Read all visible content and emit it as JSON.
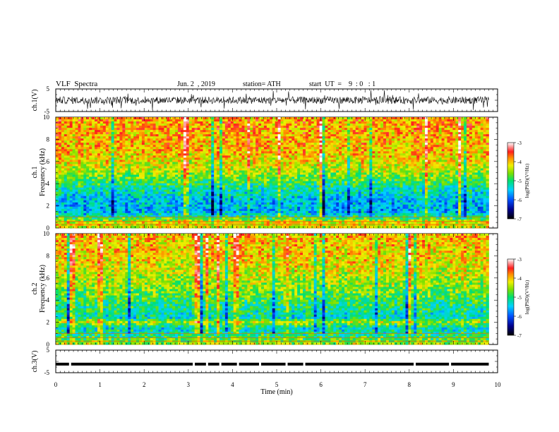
{
  "header": {
    "title": "VLF  Spectra",
    "date": "Jun. 2  , 2019",
    "station": "station= ATH",
    "start": "start  UT  =    9  : 0   : 1"
  },
  "chart_data": {
    "type": "heatmap",
    "time_axis": {
      "label": "Time  (min)",
      "range": [
        0,
        10
      ],
      "ticks": [
        "0",
        "1",
        "2",
        "3",
        "4",
        "5",
        "6",
        "7",
        "8",
        "9",
        "10"
      ],
      "data_end_min": 9.8
    },
    "panels": [
      {
        "id": "ch1_waveform",
        "type": "line",
        "ylabel": "ch.1(V)",
        "ylim": [
          -5,
          5
        ],
        "yticks": [
          "5",
          "-5"
        ],
        "description_level": "noisy waveform, amplitude about ±2.5 V"
      },
      {
        "id": "ch1_spectrogram",
        "type": "heatmap",
        "ylabel": "ch.1\nFrequency  (kHz)",
        "ylim": [
          0,
          10
        ],
        "yticks": [
          "0",
          "2",
          "4",
          "6",
          "8",
          "10"
        ],
        "colorbar": {
          "label": "log(PSD)(V²/Hz)",
          "range": [
            -7,
            -3
          ],
          "ticks": [
            "-3",
            "-4",
            "-5",
            "-6",
            "-7"
          ]
        },
        "level_profile_khz": [
          {
            "f": 0.0,
            "log_psd": -4.3
          },
          {
            "f": 0.5,
            "log_psd": -4.2
          },
          {
            "f": 1.0,
            "log_psd": -5.1
          },
          {
            "f": 1.5,
            "log_psd": -5.6
          },
          {
            "f": 2.5,
            "log_psd": -5.5
          },
          {
            "f": 3.5,
            "log_psd": -5.2
          },
          {
            "f": 4.5,
            "log_psd": -4.7
          },
          {
            "f": 5.5,
            "log_psd": -4.3
          },
          {
            "f": 7.0,
            "log_psd": -4.0
          },
          {
            "f": 10.0,
            "log_psd": -3.9
          }
        ]
      },
      {
        "id": "ch2_spectrogram",
        "type": "heatmap",
        "ylabel": "ch.2\nFrequency  (kHz)",
        "ylim": [
          0,
          10
        ],
        "yticks": [
          "0",
          "2",
          "4",
          "6",
          "8",
          "10"
        ],
        "colorbar": {
          "label": "log(PSD)(V²/Hz)",
          "range": [
            -7,
            -3
          ],
          "ticks": [
            "-3",
            "-4",
            "-5",
            "-6",
            "-7"
          ]
        },
        "level_profile_khz": [
          {
            "f": 0.0,
            "log_psd": -4.4
          },
          {
            "f": 0.8,
            "log_psd": -5.0
          },
          {
            "f": 1.5,
            "log_psd": -5.3
          },
          {
            "f": 2.1,
            "log_psd": -4.3
          },
          {
            "f": 2.3,
            "log_psd": -5.3
          },
          {
            "f": 3.5,
            "log_psd": -5.0
          },
          {
            "f": 5.0,
            "log_psd": -4.6
          },
          {
            "f": 6.5,
            "log_psd": -4.3
          },
          {
            "f": 8.0,
            "log_psd": -4.1
          },
          {
            "f": 10.0,
            "log_psd": -4.0
          }
        ]
      },
      {
        "id": "ch3_signal",
        "type": "line",
        "ylabel": "ch.3(V)",
        "ylim": [
          -5,
          5
        ],
        "yticks": [
          "5",
          "-5"
        ],
        "level_v": -1.2
      }
    ]
  }
}
